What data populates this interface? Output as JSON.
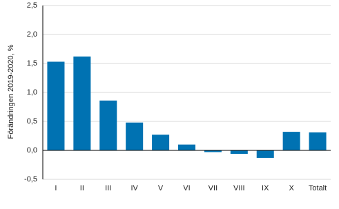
{
  "chart_data": {
    "type": "bar",
    "y_label": "Förändringen 2019-2020, %",
    "categories": [
      "I",
      "II",
      "III",
      "IV",
      "V",
      "VI",
      "VII",
      "VIII",
      "IX",
      "X",
      "Totalt"
    ],
    "values": [
      1.53,
      1.62,
      0.86,
      0.48,
      0.27,
      0.1,
      -0.03,
      -0.06,
      -0.13,
      0.32,
      0.31
    ],
    "color": "#0072b2",
    "ylim": [
      -0.5,
      2.5
    ],
    "yticks": [
      {
        "value": -0.5,
        "label": "-0,5"
      },
      {
        "value": 0,
        "label": "0,0"
      },
      {
        "value": 0.5,
        "label": "0,5"
      },
      {
        "value": 1,
        "label": "1,0"
      },
      {
        "value": 1.5,
        "label": "1,5"
      },
      {
        "value": 2,
        "label": "2,0"
      },
      {
        "value": 2.5,
        "label": "2,5"
      }
    ],
    "grid": true
  }
}
